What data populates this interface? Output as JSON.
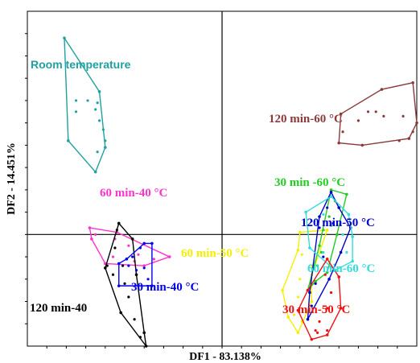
{
  "chart_data": {
    "type": "scatter",
    "xlabel": "DF1 - 83.138%",
    "ylabel": "DF2 - 14.451%",
    "xlim": [
      -10,
      10
    ],
    "ylim": [
      -5,
      10
    ],
    "grid": false,
    "reference_lines": {
      "x": 0,
      "y": 0
    },
    "series": [
      {
        "name": "Room temperature",
        "color": "#20a0a0",
        "hull": [
          [
            -8.1,
            8.8
          ],
          [
            -6.3,
            6.4
          ],
          [
            -6.0,
            3.9
          ],
          [
            -6.5,
            2.8
          ],
          [
            -7.9,
            4.2
          ]
        ],
        "points": [
          [
            -7.5,
            6.0
          ],
          [
            -6.9,
            6.0
          ],
          [
            -6.4,
            5.9
          ],
          [
            -6.5,
            5.6
          ],
          [
            -6.3,
            5.1
          ],
          [
            -6.1,
            4.7
          ],
          [
            -6.0,
            4.2
          ],
          [
            -6.4,
            3.7
          ],
          [
            -7.5,
            5.5
          ]
        ]
      },
      {
        "name": "120 min-60 °C",
        "color": "#8b3a3a",
        "hull": [
          [
            6.1,
            5.4
          ],
          [
            8.2,
            6.5
          ],
          [
            9.8,
            6.8
          ],
          [
            10.0,
            5.0
          ],
          [
            9.6,
            4.3
          ],
          [
            7.2,
            4.0
          ],
          [
            6.0,
            4.1
          ]
        ],
        "points": [
          [
            6.2,
            4.6
          ],
          [
            7.0,
            5.1
          ],
          [
            7.5,
            5.5
          ],
          [
            7.9,
            5.5
          ],
          [
            8.3,
            5.3
          ],
          [
            9.3,
            5.3
          ],
          [
            9.8,
            4.6
          ],
          [
            9.1,
            4.2
          ]
        ]
      },
      {
        "name": "60 min-40 °C",
        "color": "#ff33cc",
        "hull": [
          [
            -6.8,
            0.3
          ],
          [
            -5.4,
            0.1
          ],
          [
            -2.7,
            -1.0
          ],
          [
            -4.0,
            -1.4
          ],
          [
            -6.0,
            -1.3
          ],
          [
            -6.7,
            -0.2
          ]
        ],
        "points": [
          [
            -6.5,
            0.0
          ],
          [
            -5.5,
            -0.2
          ],
          [
            -4.8,
            -0.5
          ],
          [
            -4.3,
            -0.9
          ],
          [
            -3.5,
            -1.1
          ],
          [
            -4.5,
            -1.2
          ],
          [
            -5.6,
            -1.0
          ]
        ]
      },
      {
        "name": "120 min-40",
        "color": "#000000",
        "hull": [
          [
            -5.3,
            0.5
          ],
          [
            -4.6,
            -0.2
          ],
          [
            -4.4,
            -1.8
          ],
          [
            -4.0,
            -4.4
          ],
          [
            -3.9,
            -5.0
          ],
          [
            -5.2,
            -3.5
          ],
          [
            -6.0,
            -1.5
          ]
        ],
        "points": [
          [
            -5.4,
            0.2
          ],
          [
            -5.5,
            -0.6
          ],
          [
            -5.1,
            -1.4
          ],
          [
            -5.0,
            -2.2
          ],
          [
            -4.8,
            -2.8
          ],
          [
            -4.5,
            -3.8
          ],
          [
            -4.2,
            -4.6
          ],
          [
            -5.6,
            -1.8
          ],
          [
            -5.9,
            -1.4
          ]
        ]
      },
      {
        "name": "30 min-40 °C",
        "color": "#0000ee",
        "hull": [
          [
            -4.0,
            -0.4
          ],
          [
            -3.6,
            -0.4
          ],
          [
            -3.6,
            -2.3
          ],
          [
            -5.3,
            -2.3
          ],
          [
            -5.3,
            -1.3
          ],
          [
            -4.9,
            -1.1
          ]
        ],
        "points": [
          [
            -4.2,
            -0.6
          ],
          [
            -4.6,
            -1.0
          ],
          [
            -4.8,
            -1.4
          ],
          [
            -4.4,
            -1.6
          ],
          [
            -4.0,
            -1.5
          ],
          [
            -3.8,
            -2.0
          ]
        ]
      },
      {
        "name": "60 min-50 °C",
        "color": "#f4f000",
        "hull": [
          [
            4.0,
            0.1
          ],
          [
            5.4,
            0.2
          ],
          [
            4.6,
            -1.8
          ],
          [
            4.6,
            -3.0
          ],
          [
            3.9,
            -4.4
          ],
          [
            3.4,
            -3.7
          ],
          [
            3.1,
            -2.5
          ],
          [
            3.9,
            -0.7
          ]
        ],
        "points": [
          [
            4.1,
            -0.9
          ],
          [
            4.6,
            -1.4
          ],
          [
            4.0,
            -2.0
          ],
          [
            3.9,
            -2.8
          ],
          [
            3.7,
            -3.6
          ],
          [
            4.1,
            -3.9
          ]
        ]
      },
      {
        "name": "30 min -60 °C",
        "color": "#22cc22",
        "hull": [
          [
            5.6,
            2.0
          ],
          [
            6.4,
            1.8
          ],
          [
            5.9,
            0.0
          ],
          [
            5.4,
            -1.7
          ],
          [
            4.8,
            -2.1
          ],
          [
            4.4,
            -2.5
          ],
          [
            5.0,
            -0.5
          ]
        ],
        "points": [
          [
            5.8,
            1.5
          ],
          [
            5.5,
            0.8
          ],
          [
            5.2,
            0.2
          ],
          [
            5.1,
            -0.8
          ],
          [
            4.9,
            -1.4
          ],
          [
            5.6,
            0.4
          ]
        ]
      },
      {
        "name": "120 min-50 °C",
        "color": "#0000cc",
        "hull": [
          [
            5.6,
            1.9
          ],
          [
            6.0,
            1.2
          ],
          [
            6.6,
            0.3
          ],
          [
            6.1,
            -0.8
          ],
          [
            5.5,
            -2.0
          ],
          [
            4.4,
            -3.8
          ],
          [
            4.5,
            -2.6
          ],
          [
            5.0,
            0.8
          ]
        ],
        "points": [
          [
            5.4,
            1.2
          ],
          [
            5.0,
            0.3
          ],
          [
            5.2,
            -1.0
          ],
          [
            4.8,
            -2.2
          ],
          [
            4.6,
            -3.2
          ],
          [
            5.7,
            0.5
          ]
        ]
      },
      {
        "name": "60 min-60 °C",
        "color": "#33dddd",
        "hull": [
          [
            4.3,
            1.0
          ],
          [
            5.6,
            1.7
          ],
          [
            6.5,
            0.9
          ],
          [
            6.7,
            -0.1
          ],
          [
            6.7,
            -1.2
          ],
          [
            5.8,
            -1.6
          ],
          [
            4.5,
            -0.6
          ]
        ],
        "points": [
          [
            4.6,
            0.6
          ],
          [
            5.2,
            0.9
          ],
          [
            5.6,
            0.4
          ],
          [
            6.2,
            0.0
          ],
          [
            6.4,
            -0.8
          ],
          [
            5.2,
            -0.8
          ]
        ]
      },
      {
        "name": "30 min-50 °C",
        "color": "#ee1111",
        "hull": [
          [
            5.4,
            -1.1
          ],
          [
            6.0,
            -1.9
          ],
          [
            6.1,
            -3.3
          ],
          [
            5.4,
            -4.5
          ],
          [
            4.6,
            -4.7
          ],
          [
            3.9,
            -3.4
          ],
          [
            4.4,
            -2.5
          ]
        ],
        "points": [
          [
            5.3,
            -1.8
          ],
          [
            5.6,
            -2.6
          ],
          [
            5.4,
            -3.3
          ],
          [
            5.0,
            -3.9
          ],
          [
            4.8,
            -4.3
          ],
          [
            4.9,
            -4.4
          ],
          [
            5.4,
            -4.3
          ]
        ]
      }
    ]
  }
}
